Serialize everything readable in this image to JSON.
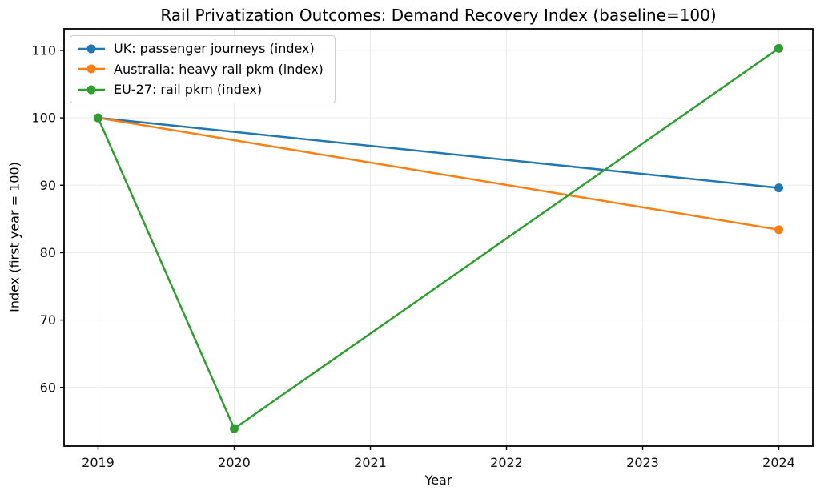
{
  "chart_data": {
    "type": "line",
    "title": "Rail Privatization Outcomes: Demand Recovery Index (baseline=100)",
    "xlabel": "Year",
    "ylabel": "Index (first year = 100)",
    "x_ticks": [
      2019,
      2020,
      2021,
      2022,
      2023,
      2024
    ],
    "y_ticks": [
      60,
      70,
      80,
      90,
      100,
      110
    ],
    "xlim": [
      2018.75,
      2024.25
    ],
    "ylim": [
      51.3,
      113.2
    ],
    "grid": true,
    "legend_position": "upper left",
    "background_color": "#ffffff",
    "series": [
      {
        "name": "UK: passenger journeys (index)",
        "color": "#1f77b4",
        "x": [
          2019,
          2024
        ],
        "y": [
          100,
          89.6
        ]
      },
      {
        "name": "Australia: heavy rail pkm (index)",
        "color": "#ff7f0e",
        "x": [
          2019,
          2024
        ],
        "y": [
          100,
          83.4
        ]
      },
      {
        "name": "EU-27: rail pkm (index)",
        "color": "#2ca02c",
        "x": [
          2019,
          2020,
          2024
        ],
        "y": [
          100,
          53.9,
          110.3
        ]
      }
    ]
  }
}
